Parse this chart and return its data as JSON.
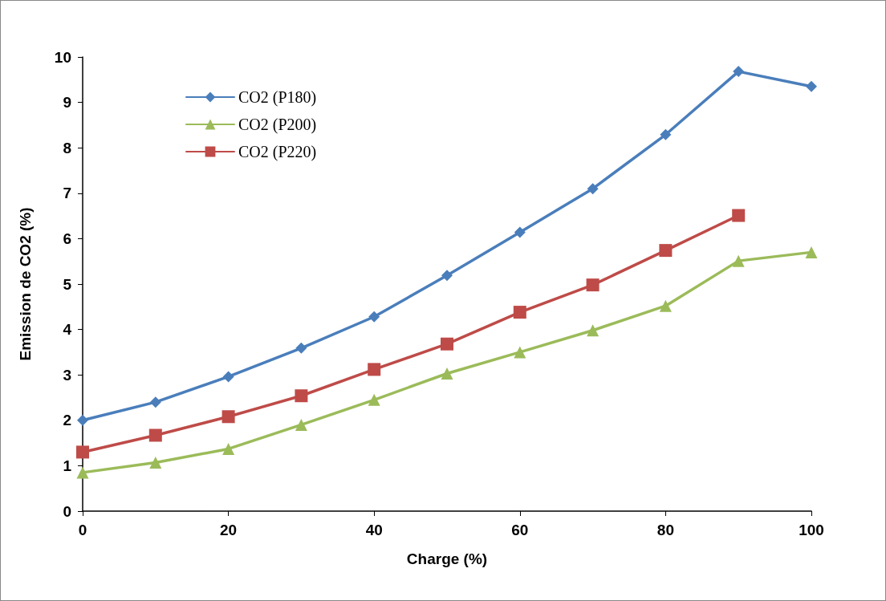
{
  "chart_data": {
    "type": "line",
    "xlabel": "Charge (%)",
    "ylabel": "Emission de CO2 (%)",
    "x": [
      0,
      10,
      20,
      30,
      40,
      50,
      60,
      70,
      80,
      90,
      100
    ],
    "series": [
      {
        "name": "CO2 (P180)",
        "color": "#4a7ebb",
        "marker": "diamond",
        "values": [
          2.0,
          2.4,
          2.96,
          3.59,
          4.28,
          5.19,
          6.14,
          7.1,
          8.29,
          9.68,
          9.35
        ]
      },
      {
        "name": "CO2 (P200)",
        "color": "#9bbb59",
        "marker": "triangle",
        "values": [
          0.85,
          1.07,
          1.37,
          1.9,
          2.45,
          3.03,
          3.5,
          3.98,
          4.52,
          5.51,
          5.7
        ]
      },
      {
        "name": "CO2 (P220)",
        "color": "#be4b48",
        "marker": "square",
        "values": [
          1.3,
          1.67,
          2.08,
          2.54,
          3.12,
          3.68,
          4.38,
          4.98,
          5.74,
          6.51,
          null
        ]
      }
    ],
    "xlim": [
      0,
      100
    ],
    "xticks": [
      0,
      20,
      40,
      60,
      80,
      100
    ],
    "ylim": [
      0,
      10
    ],
    "yticks": [
      0,
      1,
      2,
      3,
      4,
      5,
      6,
      7,
      8,
      9,
      10
    ],
    "grid": false,
    "legend": "top left",
    "line_style": "solid"
  }
}
